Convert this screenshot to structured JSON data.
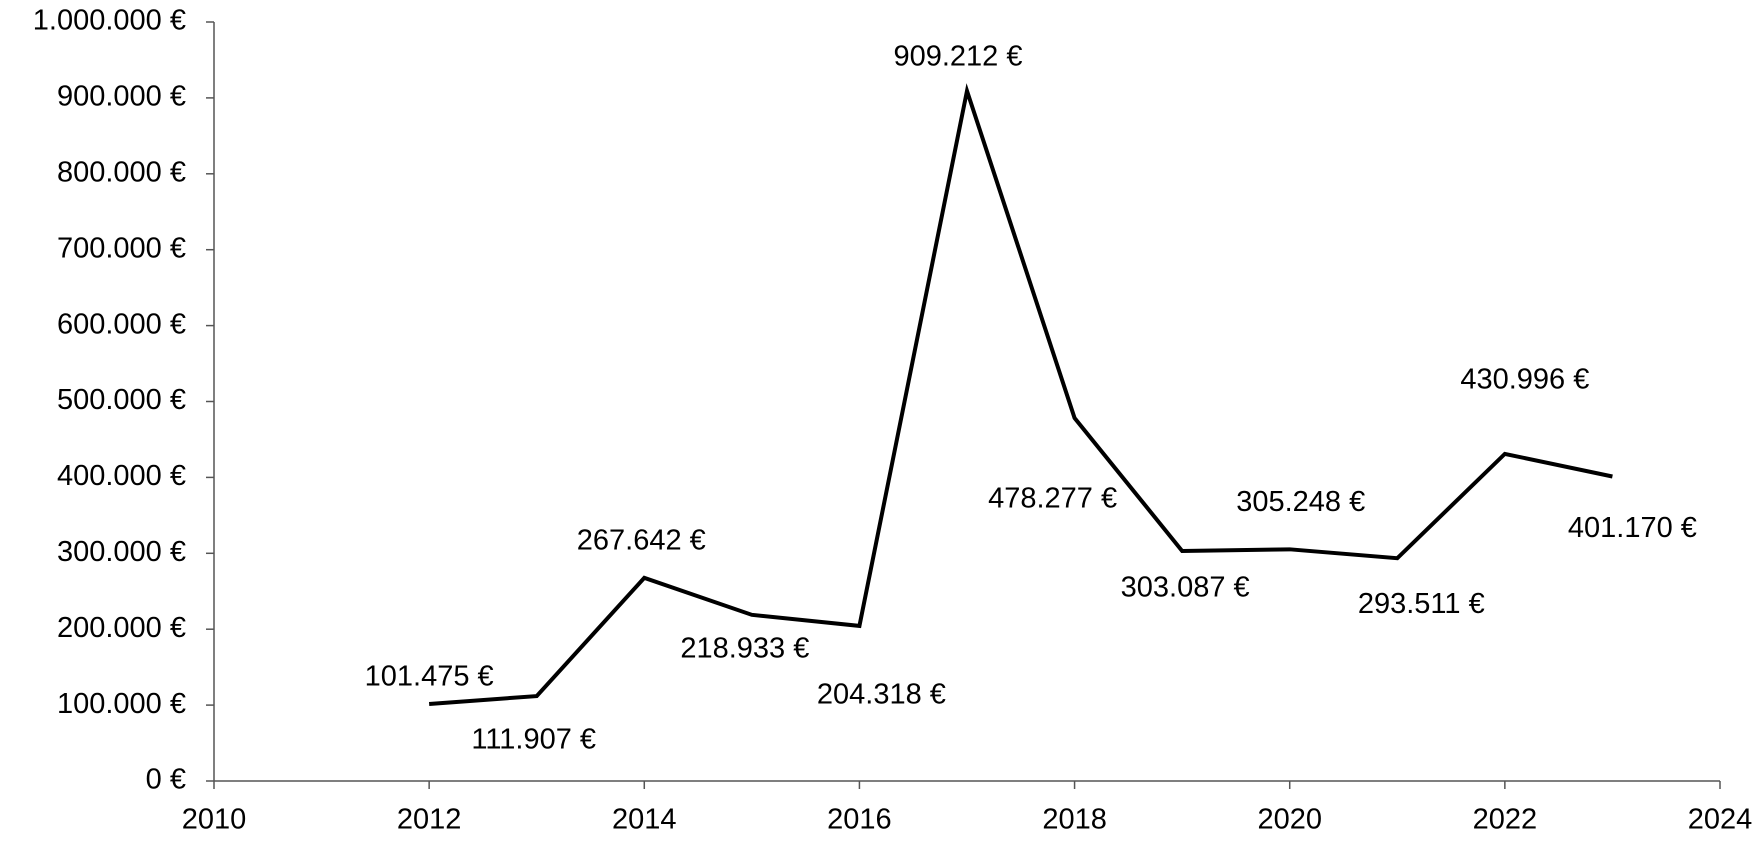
{
  "chart_data": {
    "type": "line",
    "x": [
      2012,
      2013,
      2014,
      2015,
      2016,
      2017,
      2018,
      2019,
      2020,
      2021,
      2022,
      2023
    ],
    "series": [
      {
        "color": "#000000",
        "values": [
          101475,
          111907,
          267642,
          218933,
          204318,
          909212,
          478277,
          303087,
          305248,
          293511,
          430996,
          401170
        ],
        "value_labels": [
          "101.475 €",
          "111.907 €",
          "267.642 €",
          "218.933 €",
          "204.318 €",
          "909.212 €",
          "478.277 €",
          "303.087 €",
          "305.248 €",
          "293.511 €",
          "430.996 €",
          "401.170 €"
        ]
      }
    ],
    "xlim": [
      2010,
      2024
    ],
    "xticks": [
      2010,
      2012,
      2014,
      2016,
      2018,
      2020,
      2022,
      2024
    ],
    "ylim": [
      0,
      1000000
    ],
    "yticks": [
      {
        "value": 0,
        "label": "0 €"
      },
      {
        "value": 100000,
        "label": "100.000 €"
      },
      {
        "value": 200000,
        "label": "200.000 €"
      },
      {
        "value": 300000,
        "label": "300.000 €"
      },
      {
        "value": 400000,
        "label": "400.000 €"
      },
      {
        "value": 500000,
        "label": "500.000 €"
      },
      {
        "value": 600000,
        "label": "600.000 €"
      },
      {
        "value": 700000,
        "label": "700.000 €"
      },
      {
        "value": 800000,
        "label": "800.000 €"
      },
      {
        "value": 900000,
        "label": "900.000 €"
      },
      {
        "value": 1000000,
        "label": "1.000.000 €"
      }
    ],
    "grid": false
  }
}
